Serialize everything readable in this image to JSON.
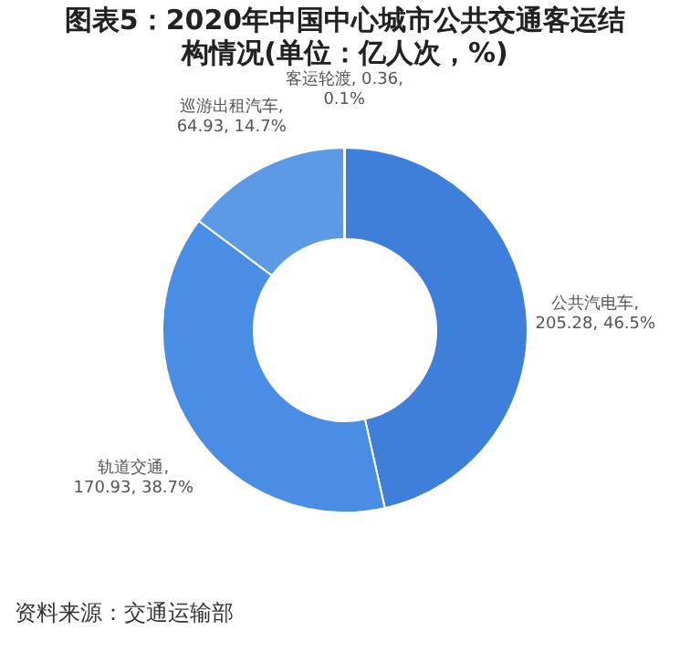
{
  "chart_data": {
    "type": "donut",
    "title": [
      "图表5：2020年中国中心城市公共交通客运结",
      "构情况(单位：亿人次，%)"
    ],
    "categories": [
      "公共汽电车",
      "轨道交通",
      "巡游出租汽车",
      "客运轮渡"
    ],
    "values": [
      205.28,
      170.93,
      64.93,
      0.36
    ],
    "colors": [
      "#3d7fdb",
      "#4a8de4",
      "#5c9ae6",
      "#8fbaf0"
    ],
    "value_labels": [
      ",\n205.28, 46.5%",
      ",\n170.93, 38.7%",
      ",\n64.93, 14.7%",
      ", 0.36,\n0.1%"
    ],
    "annotations": [
      "资料来源：交通运输部"
    ]
  }
}
